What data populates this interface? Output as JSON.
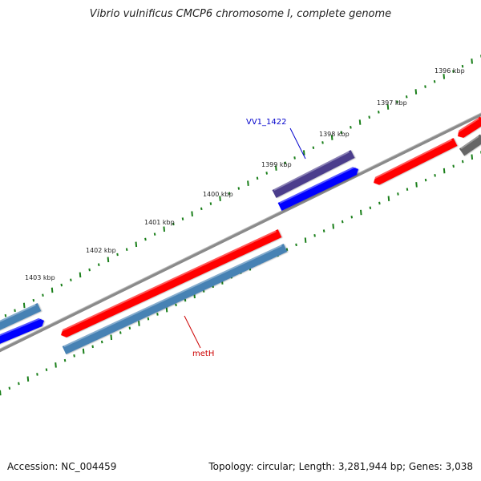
{
  "title": "Vibrio vulnificus CMCP6 chromosome I, complete genome",
  "footer": {
    "accession": "Accession: NC_004459",
    "topology": "Topology: circular; Length: 3,281,944 bp; Genes: 3,038"
  },
  "ticks": [
    "1396 kbp",
    "1397 kbp",
    "1398 kbp",
    "1399 kbp",
    "1400 kbp",
    "1401 kbp",
    "1402 kbp",
    "1403 kbp"
  ],
  "gene_labels": [
    {
      "name": "VV1_1422",
      "color": "#0000cc"
    },
    {
      "name": "metH",
      "color": "#cc0000"
    }
  ],
  "colors": {
    "backbone": "#888888",
    "forward_cds": "#ff0000",
    "reverse_cds": "#0000ff",
    "steelblue_cds": "#4682b4",
    "dark_cds": "#4b3d8c",
    "grey_cds": "#666666",
    "gc_ticks": "#1a7f1a"
  }
}
